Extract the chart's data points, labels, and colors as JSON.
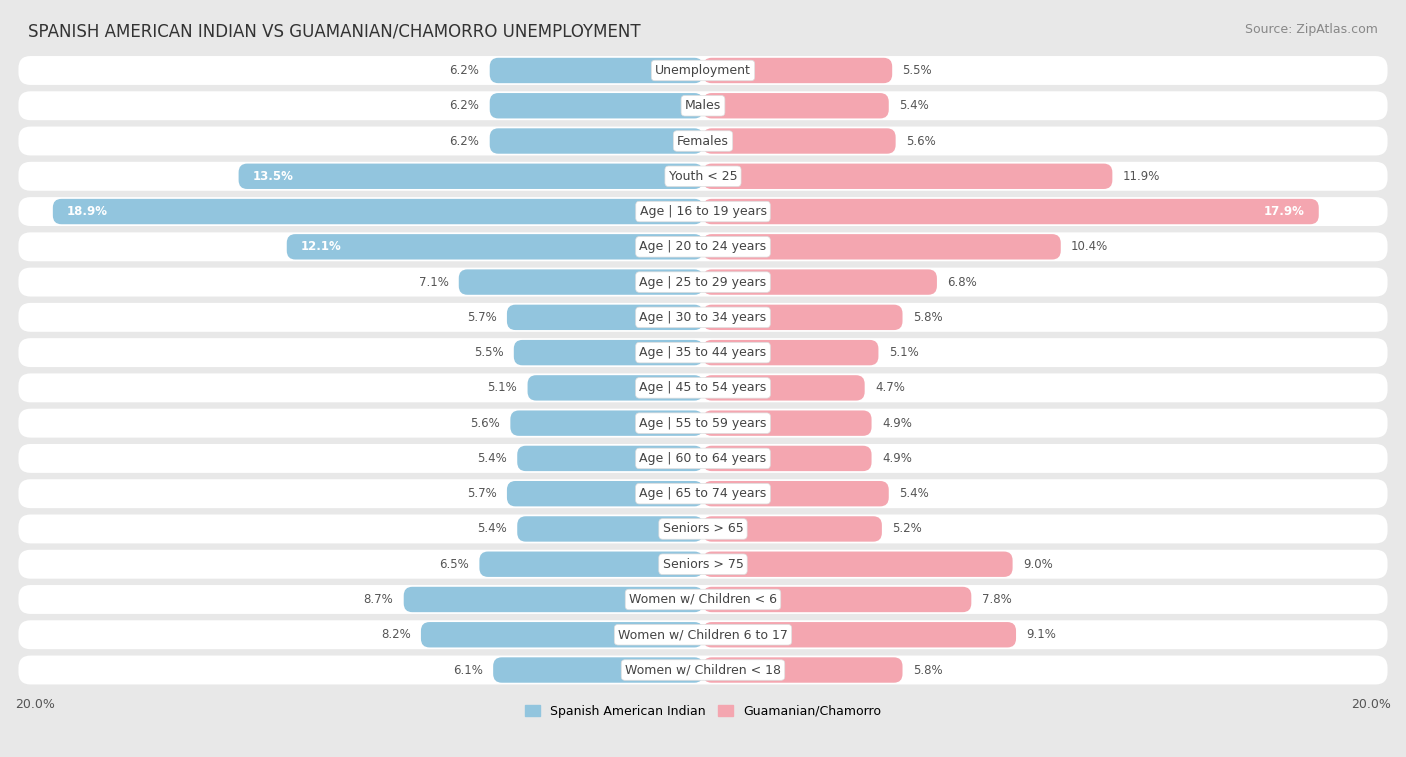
{
  "title": "SPANISH AMERICAN INDIAN VS GUAMANIAN/CHAMORRO UNEMPLOYMENT",
  "source": "Source: ZipAtlas.com",
  "categories": [
    "Unemployment",
    "Males",
    "Females",
    "Youth < 25",
    "Age | 16 to 19 years",
    "Age | 20 to 24 years",
    "Age | 25 to 29 years",
    "Age | 30 to 34 years",
    "Age | 35 to 44 years",
    "Age | 45 to 54 years",
    "Age | 55 to 59 years",
    "Age | 60 to 64 years",
    "Age | 65 to 74 years",
    "Seniors > 65",
    "Seniors > 75",
    "Women w/ Children < 6",
    "Women w/ Children 6 to 17",
    "Women w/ Children < 18"
  ],
  "left_values": [
    6.2,
    6.2,
    6.2,
    13.5,
    18.9,
    12.1,
    7.1,
    5.7,
    5.5,
    5.1,
    5.6,
    5.4,
    5.7,
    5.4,
    6.5,
    8.7,
    8.2,
    6.1
  ],
  "right_values": [
    5.5,
    5.4,
    5.6,
    11.9,
    17.9,
    10.4,
    6.8,
    5.8,
    5.1,
    4.7,
    4.9,
    4.9,
    5.4,
    5.2,
    9.0,
    7.8,
    9.1,
    5.8
  ],
  "left_color": "#92c5de",
  "right_color": "#f4a6b0",
  "left_label": "Spanish American Indian",
  "right_label": "Guamanian/Chamorro",
  "axis_max": 20.0,
  "background_color": "#e8e8e8",
  "row_bg_color": "#ffffff",
  "title_fontsize": 12,
  "label_fontsize": 9,
  "value_fontsize": 8.5,
  "source_fontsize": 9
}
